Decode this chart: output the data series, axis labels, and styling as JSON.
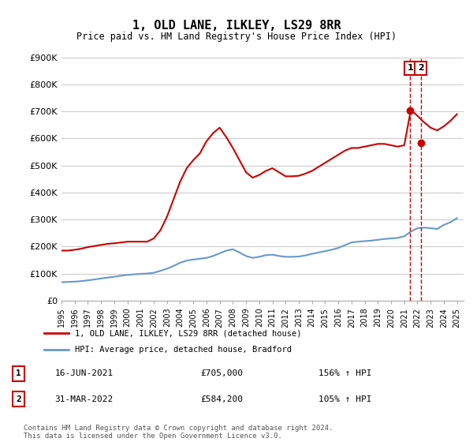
{
  "title": "1, OLD LANE, ILKLEY, LS29 8RR",
  "subtitle": "Price paid vs. HM Land Registry's House Price Index (HPI)",
  "ylabel_values": [
    "£0",
    "£100K",
    "£200K",
    "£300K",
    "£400K",
    "£500K",
    "£600K",
    "£700K",
    "£800K",
    "£900K"
  ],
  "ylim": [
    0,
    900000
  ],
  "yticks": [
    0,
    100000,
    200000,
    300000,
    400000,
    500000,
    600000,
    700000,
    800000,
    900000
  ],
  "xlim_start": 1995.0,
  "xlim_end": 2025.5,
  "red_color": "#cc0000",
  "blue_color": "#6699cc",
  "marker_color_1": "#cc0000",
  "marker_color_2": "#cc0000",
  "vline_color": "#cc0000",
  "grid_color": "#cccccc",
  "bg_color": "#ffffff",
  "legend_label_red": "1, OLD LANE, ILKLEY, LS29 8RR (detached house)",
  "legend_label_blue": "HPI: Average price, detached house, Bradford",
  "annotation1_num": "1",
  "annotation1_date": "16-JUN-2021",
  "annotation1_price": "£705,000",
  "annotation1_hpi": "156% ↑ HPI",
  "annotation2_num": "2",
  "annotation2_date": "31-MAR-2022",
  "annotation2_price": "£584,200",
  "annotation2_hpi": "105% ↑ HPI",
  "footnote": "Contains HM Land Registry data © Crown copyright and database right 2024.\nThis data is licensed under the Open Government Licence v3.0.",
  "transaction1_x": 2021.46,
  "transaction1_y": 705000,
  "transaction2_x": 2022.25,
  "transaction2_y": 584200,
  "hpi_data_x": [
    1995,
    1995.5,
    1996,
    1996.5,
    1997,
    1997.5,
    1998,
    1998.5,
    1999,
    1999.5,
    2000,
    2000.5,
    2001,
    2001.5,
    2002,
    2002.5,
    2003,
    2003.5,
    2004,
    2004.5,
    2005,
    2005.5,
    2006,
    2006.5,
    2007,
    2007.5,
    2008,
    2008.5,
    2009,
    2009.5,
    2010,
    2010.5,
    2011,
    2011.5,
    2012,
    2012.5,
    2013,
    2013.5,
    2014,
    2014.5,
    2015,
    2015.5,
    2016,
    2016.5,
    2017,
    2017.5,
    2018,
    2018.5,
    2019,
    2019.5,
    2020,
    2020.5,
    2021,
    2021.5,
    2022,
    2022.5,
    2023,
    2023.5,
    2024,
    2024.5,
    2025
  ],
  "hpi_data_y": [
    68000,
    69000,
    70000,
    72000,
    75000,
    78000,
    82000,
    85000,
    88000,
    92000,
    95000,
    97000,
    99000,
    100000,
    103000,
    110000,
    118000,
    128000,
    140000,
    148000,
    152000,
    155000,
    158000,
    165000,
    175000,
    185000,
    190000,
    178000,
    165000,
    158000,
    162000,
    168000,
    170000,
    165000,
    162000,
    162000,
    163000,
    167000,
    173000,
    178000,
    183000,
    188000,
    195000,
    205000,
    215000,
    218000,
    220000,
    222000,
    225000,
    228000,
    230000,
    232000,
    238000,
    255000,
    268000,
    270000,
    268000,
    265000,
    280000,
    290000,
    305000
  ],
  "red_data_x": [
    1995,
    1995.5,
    1996,
    1996.5,
    1997,
    1997.5,
    1998,
    1998.5,
    1999,
    1999.5,
    2000,
    2000.5,
    2001,
    2001.5,
    2002,
    2002.5,
    2003,
    2003.5,
    2004,
    2004.5,
    2005,
    2005.5,
    2006,
    2006.5,
    2007,
    2007.5,
    2008,
    2008.5,
    2009,
    2009.5,
    2010,
    2010.5,
    2011,
    2011.5,
    2012,
    2012.5,
    2013,
    2013.5,
    2014,
    2014.5,
    2015,
    2015.5,
    2016,
    2016.5,
    2017,
    2017.5,
    2018,
    2018.5,
    2019,
    2019.5,
    2020,
    2020.5,
    2021,
    2021.5,
    2022,
    2022.5,
    2023,
    2023.5,
    2024,
    2024.5,
    2025
  ],
  "red_data_y": [
    185000,
    185000,
    188000,
    192000,
    198000,
    202000,
    206000,
    210000,
    212000,
    215000,
    218000,
    218000,
    218000,
    218000,
    230000,
    260000,
    310000,
    375000,
    440000,
    490000,
    520000,
    545000,
    590000,
    620000,
    640000,
    605000,
    565000,
    520000,
    475000,
    455000,
    465000,
    480000,
    490000,
    475000,
    460000,
    460000,
    462000,
    470000,
    480000,
    495000,
    510000,
    525000,
    540000,
    555000,
    565000,
    565000,
    570000,
    575000,
    580000,
    580000,
    575000,
    570000,
    575000,
    705000,
    684200,
    660000,
    640000,
    630000,
    645000,
    665000,
    690000
  ]
}
